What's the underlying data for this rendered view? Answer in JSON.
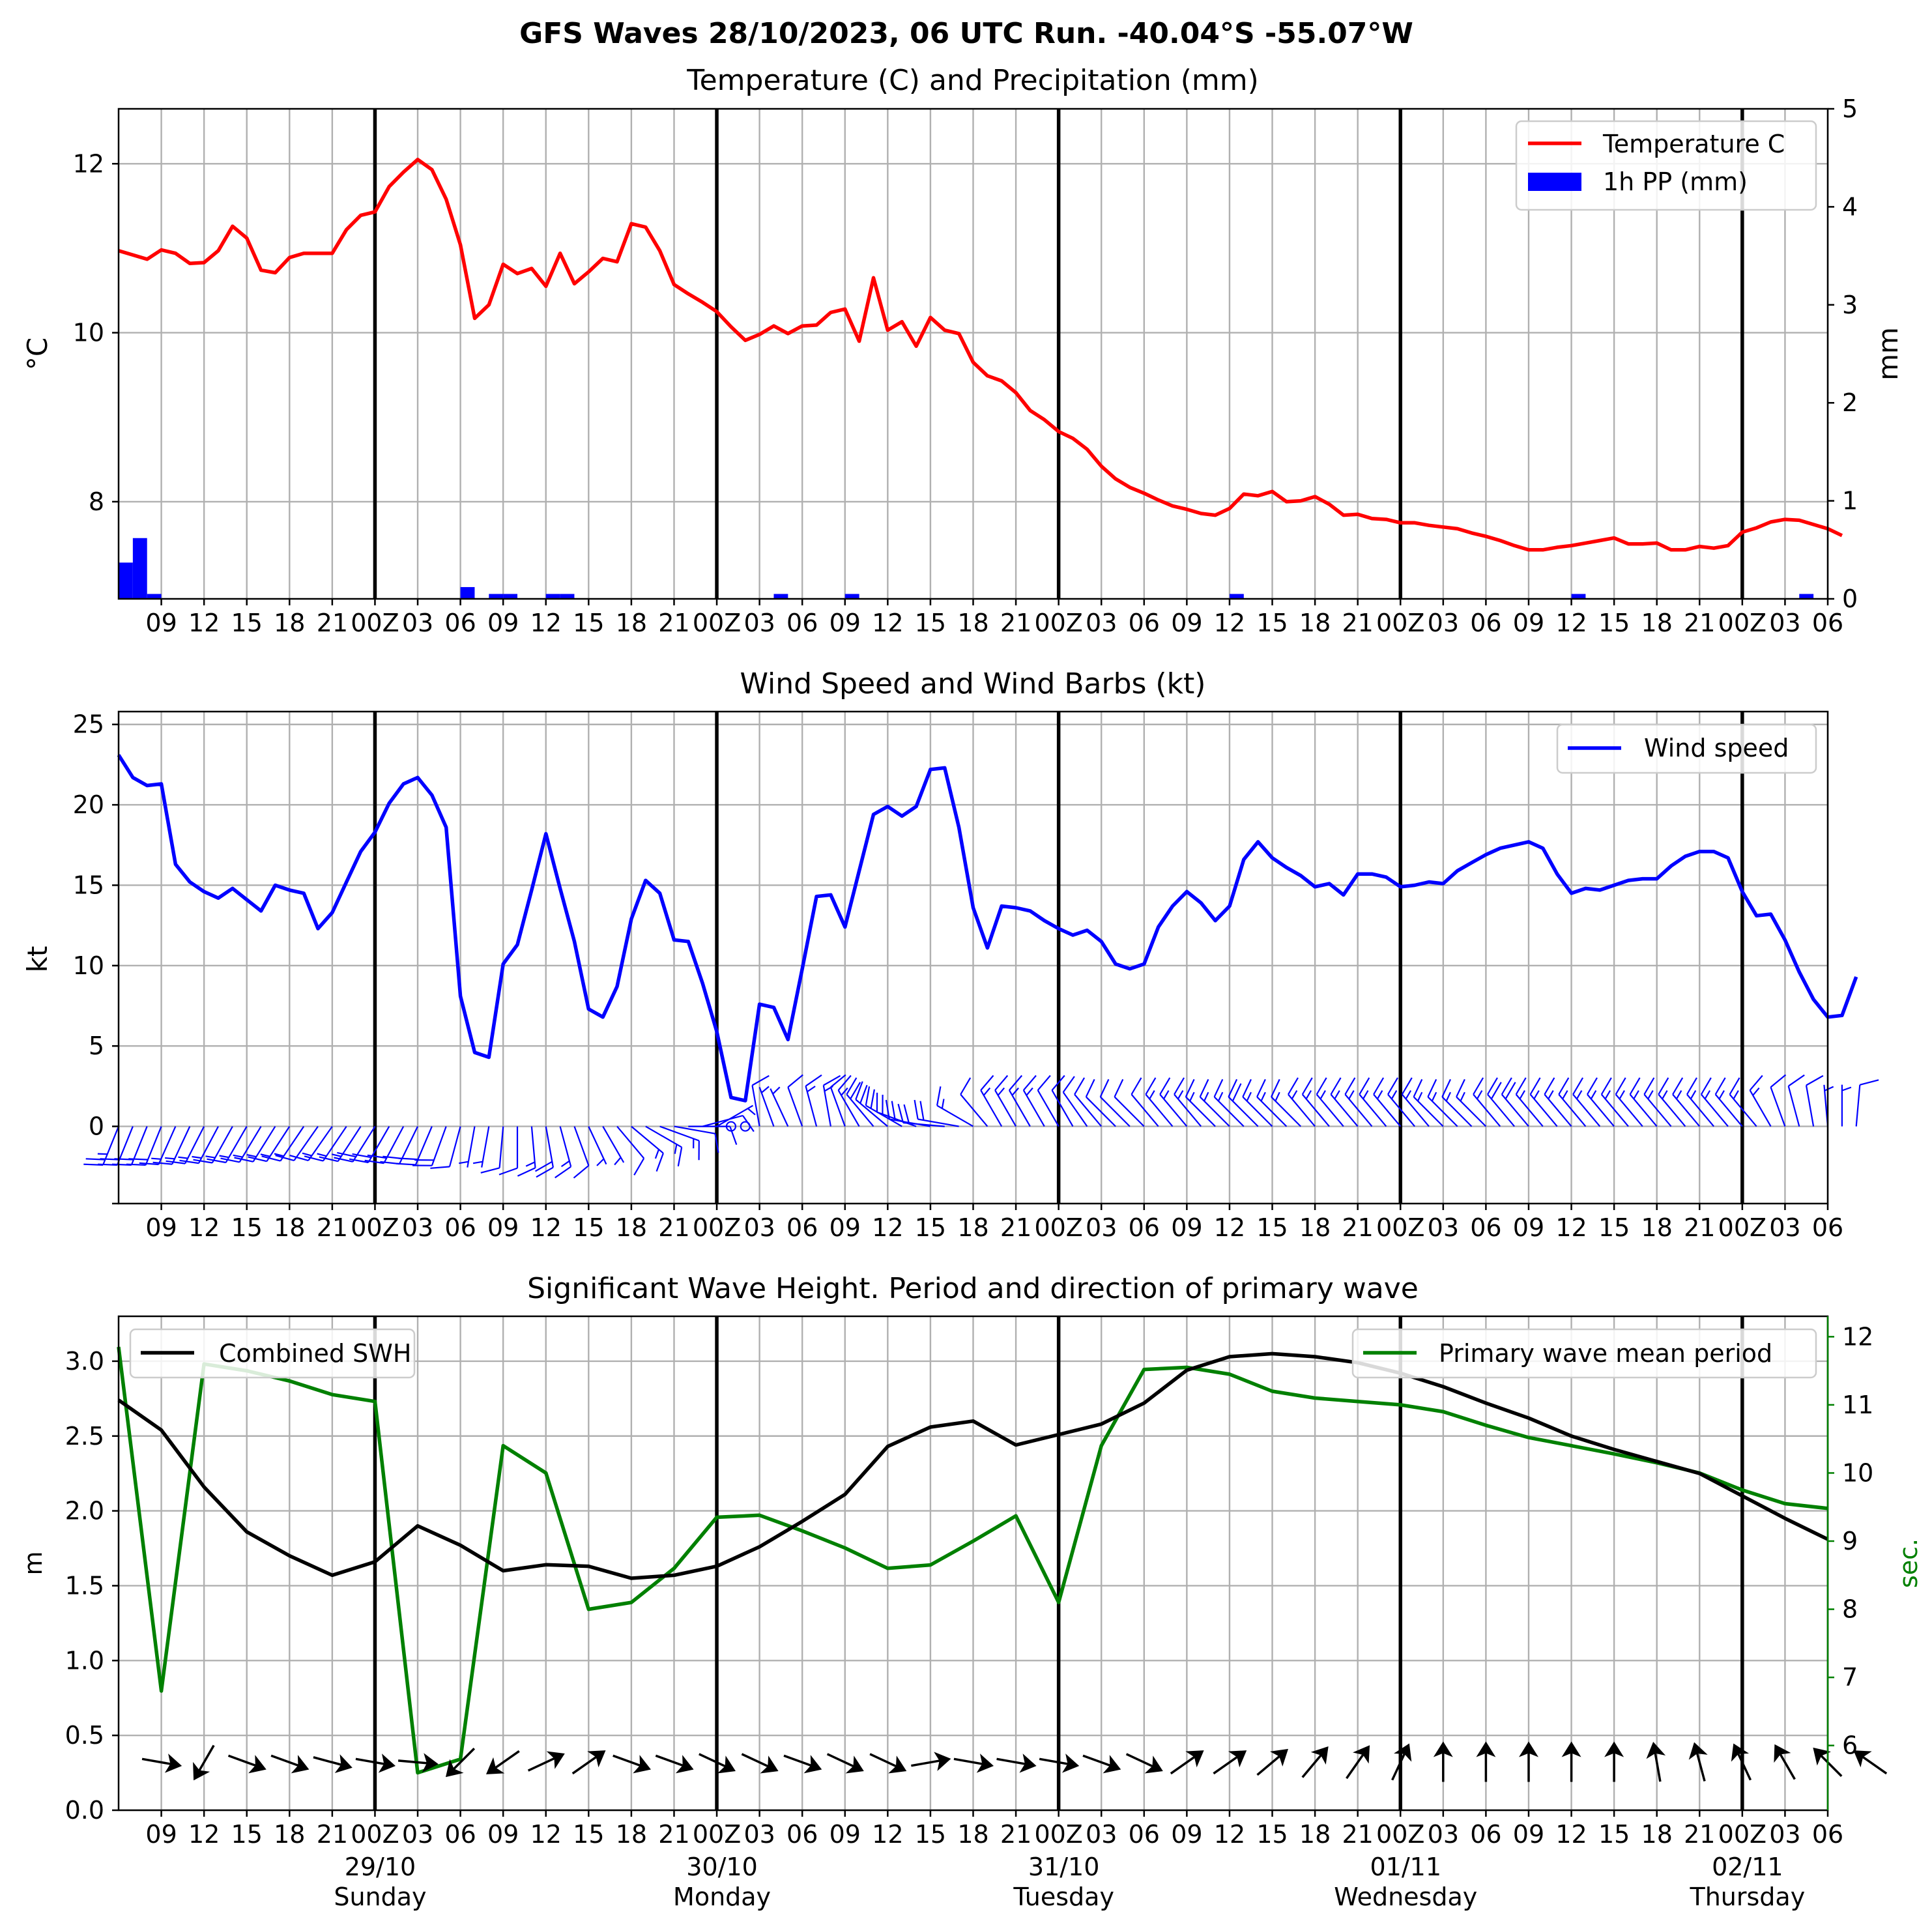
{
  "figure": {
    "suptitle": "GFS Waves 28/10/2023, 06 UTC Run. -40.04°S -55.07°W"
  },
  "chart_data": [
    {
      "type": "line",
      "title": "Temperature (C) and Precipitation (mm)",
      "ylabel": "$^\\circ$C",
      "ylabel_display": "°C",
      "y2label": "mm",
      "ylim": [
        6.85,
        12.65
      ],
      "y2lim": [
        0,
        5
      ],
      "yticks": [
        "8",
        "10",
        "12"
      ],
      "y2ticks": [
        "0",
        "1",
        "2",
        "3",
        "4",
        "5"
      ],
      "x_start_hour": 6,
      "x_step_hours": 1,
      "colors": {
        "temperature": "#ff0000",
        "precip": "#0000ff"
      },
      "legend_position": "upper right",
      "series": [
        {
          "name": "Temperature C",
          "values": [
            10.97,
            10.92,
            10.87,
            10.98,
            10.94,
            10.82,
            10.83,
            10.97,
            11.26,
            11.12,
            10.74,
            10.71,
            10.89,
            10.94,
            10.94,
            10.94,
            11.22,
            11.39,
            11.43,
            11.73,
            11.9,
            12.05,
            11.93,
            11.58,
            11.04,
            10.17,
            10.33,
            10.81,
            10.7,
            10.76,
            10.55,
            10.94,
            10.58,
            10.72,
            10.88,
            10.84,
            11.29,
            11.25,
            10.97,
            10.57,
            10.46,
            10.36,
            10.25,
            10.07,
            9.91,
            9.98,
            10.08,
            9.99,
            10.08,
            10.09,
            10.24,
            10.28,
            9.9,
            10.65,
            10.03,
            10.13,
            9.84,
            10.18,
            10.03,
            9.99,
            9.65,
            9.49,
            9.43,
            9.29,
            9.08,
            8.97,
            8.83,
            8.75,
            8.62,
            8.42,
            8.27,
            8.17,
            8.1,
            8.02,
            7.95,
            7.91,
            7.86,
            7.84,
            7.92,
            8.09,
            8.07,
            8.12,
            8.0,
            8.01,
            8.06,
            7.97,
            7.84,
            7.85,
            7.8,
            7.79,
            7.75,
            7.75,
            7.72,
            7.7,
            7.68,
            7.63,
            7.59,
            7.54,
            7.48,
            7.43,
            7.43,
            7.46,
            7.48,
            7.51,
            7.54,
            7.57,
            7.5,
            7.5,
            7.51,
            7.43,
            7.43,
            7.47,
            7.45,
            7.48,
            7.64,
            7.69,
            7.76,
            7.79,
            7.78,
            7.73,
            7.68,
            7.6
          ]
        },
        {
          "name": "1h PP (mm)",
          "values": [
            0.37,
            0.62,
            0.05,
            0,
            0,
            0,
            0,
            0,
            0,
            0,
            0,
            0,
            0,
            0,
            0,
            0,
            0,
            0,
            0,
            0,
            0,
            0,
            0,
            0,
            0.12,
            0,
            0.05,
            0.05,
            0,
            0,
            0.05,
            0.05,
            0,
            0,
            0,
            0,
            0,
            0,
            0,
            0,
            0,
            0,
            0,
            0,
            0,
            0,
            0.05,
            0,
            0,
            0,
            0,
            0.05,
            0,
            0,
            0,
            0,
            0,
            0,
            0,
            0,
            0,
            0,
            0,
            0,
            0,
            0,
            0,
            0,
            0,
            0,
            0,
            0,
            0,
            0,
            0,
            0,
            0,
            0,
            0.05,
            0,
            0,
            0,
            0,
            0,
            0,
            0,
            0,
            0,
            0,
            0,
            0,
            0,
            0,
            0,
            0,
            0,
            0,
            0,
            0,
            0,
            0,
            0,
            0.05,
            0,
            0,
            0,
            0,
            0,
            0,
            0,
            0,
            0,
            0,
            0,
            0,
            0,
            0,
            0,
            0.05,
            0,
            0,
            0,
            0,
            0
          ]
        }
      ]
    },
    {
      "type": "line",
      "title": "Wind Speed and Wind Barbs (kt)",
      "ylabel": "kt",
      "ylim": [
        -4.8,
        25.8
      ],
      "yticks": [
        "0",
        "5",
        "10",
        "15",
        "20",
        "25"
      ],
      "x_start_hour": 6,
      "x_step_hours": 1,
      "colors": {
        "wind": "#0000ff"
      },
      "legend_position": "upper right",
      "series": [
        {
          "name": "Wind speed",
          "values": [
            23.1,
            21.7,
            21.2,
            21.3,
            16.3,
            15.2,
            14.6,
            14.2,
            14.8,
            14.1,
            13.4,
            15,
            14.7,
            14.5,
            12.3,
            13.3,
            15.2,
            17.1,
            18.3,
            20.1,
            21.3,
            21.7,
            20.6,
            18.6,
            8.1,
            4.6,
            4.3,
            10.1,
            11.3,
            14.7,
            18.2,
            14.8,
            11.5,
            7.3,
            6.8,
            8.7,
            12.9,
            15.3,
            14.5,
            11.6,
            11.5,
            8.9,
            5.9,
            1.8,
            1.6,
            7.6,
            7.4,
            5.4,
            9.8,
            14.3,
            14.4,
            12.4,
            15.9,
            19.4,
            19.9,
            19.3,
            19.9,
            22.2,
            22.3,
            18.6,
            13.6,
            11.1,
            13.7,
            13.6,
            13.4,
            12.8,
            12.3,
            11.9,
            12.2,
            11.5,
            10.1,
            9.8,
            10.1,
            12.4,
            13.7,
            14.6,
            13.9,
            12.8,
            13.7,
            16.6,
            17.7,
            16.7,
            16.1,
            15.6,
            14.9,
            15.1,
            14.4,
            15.7,
            15.7,
            15.5,
            14.9,
            15,
            15.2,
            15.1,
            15.9,
            16.4,
            16.9,
            17.3,
            17.5,
            17.7,
            17.3,
            15.7,
            14.5,
            14.8,
            14.7,
            15,
            15.3,
            15.4,
            15.4,
            16.2,
            16.8,
            17.1,
            17.1,
            16.7,
            14.6,
            13.1,
            13.2,
            11.6,
            9.6,
            7.9,
            6.8,
            6.9,
            9.3
          ]
        }
      ],
      "barbs": {
        "heading_deg": [
          -158,
          -158,
          -158,
          -158,
          -156,
          -155,
          -153,
          -152,
          -151,
          -150,
          -149,
          -148,
          -147,
          -146,
          -145,
          -145,
          -146,
          -147,
          -148,
          -150,
          -152,
          -154,
          -157,
          -160,
          -165,
          -170,
          -170,
          -175,
          180,
          175,
          170,
          165,
          160,
          155,
          150,
          140,
          130,
          120,
          110,
          100,
          90,
          75,
          60,
          40,
          20,
          -10,
          -20,
          -25,
          -20,
          -15,
          -10,
          -20,
          -30,
          -40,
          -50,
          -60,
          -70,
          -80,
          -85,
          -80,
          -60,
          -40,
          -30,
          -30,
          -30,
          -30,
          -30,
          -30,
          -35,
          -40,
          -45,
          -45,
          -45,
          -40,
          -40,
          -40,
          -40,
          -45,
          -45,
          -45,
          -45,
          -45,
          -45,
          -45,
          -40,
          -40,
          -40,
          -40,
          -40,
          -40,
          -40,
          -40,
          -40,
          -45,
          -45,
          -45,
          -45,
          -40,
          -40,
          -40,
          -40,
          -40,
          -40,
          -40,
          -40,
          -40,
          -40,
          -40,
          -40,
          -40,
          -40,
          -40,
          -40,
          -40,
          -40,
          -40,
          -30,
          -20,
          -15,
          -10,
          -5,
          0,
          5
        ]
      }
    },
    {
      "type": "line",
      "title": "Significant Wave Height. Period and direction of primary wave",
      "ylabel": "m",
      "y2label": "sec.",
      "ylim": [
        0,
        3.3
      ],
      "y2lim": [
        5.05,
        12.3
      ],
      "yticks": [
        "0.0",
        "0.5",
        "1.0",
        "1.5",
        "2.0",
        "2.5",
        "3.0"
      ],
      "y2ticks": [
        "6",
        "7",
        "8",
        "9",
        "10",
        "11",
        "12"
      ],
      "x_start_hour": 6,
      "x_step_hours": 3,
      "colors": {
        "swh": "#000000",
        "period": "#008000",
        "arrows": "#000000"
      },
      "series": [
        {
          "name": "Combined SWH",
          "values": [
            2.74,
            2.54,
            2.16,
            1.86,
            1.7,
            1.57,
            1.66,
            1.9,
            1.77,
            1.6,
            1.64,
            1.63,
            1.55,
            1.57,
            1.63,
            1.76,
            1.93,
            2.11,
            2.43,
            2.56,
            2.6,
            2.44,
            2.51,
            2.58,
            2.72,
            2.94,
            3.03,
            3.05,
            3.03,
            2.99,
            2.92,
            2.83,
            2.72,
            2.62,
            2.5,
            2.41,
            2.33,
            2.25,
            2.1,
            1.95,
            1.81
          ]
        },
        {
          "name": "Primary wave mean period",
          "values": [
            11.85,
            6.8,
            11.6,
            11.5,
            11.35,
            11.15,
            11.05,
            5.6,
            5.8,
            10.4,
            10.0,
            8.0,
            8.1,
            8.6,
            9.35,
            9.38,
            9.15,
            8.9,
            8.6,
            8.65,
            9.0,
            9.37,
            8.1,
            10.4,
            11.52,
            11.55,
            11.45,
            11.2,
            11.1,
            11.05,
            11.0,
            10.9,
            10.7,
            10.52,
            10.4,
            10.28,
            10.15,
            10.0,
            9.75,
            9.55,
            9.48
          ]
        }
      ],
      "legend_position": [
        "upper left",
        "upper right"
      ],
      "direction_arrows": {
        "heading_deg": [
          100,
          210,
          110,
          110,
          105,
          100,
          95,
          225,
          235,
          65,
          55,
          110,
          110,
          115,
          115,
          110,
          115,
          115,
          80,
          100,
          100,
          100,
          110,
          115,
          55,
          55,
          50,
          40,
          35,
          25,
          0,
          0,
          0,
          0,
          0,
          -10,
          -15,
          -25,
          -30,
          -45,
          -55
        ]
      }
    }
  ],
  "xaxis": {
    "tick_labels": [
      "09",
      "12",
      "15",
      "18",
      "21",
      "00Z",
      "03",
      "06",
      "09",
      "12",
      "15",
      "18",
      "21",
      "00Z",
      "03",
      "06",
      "09",
      "12",
      "15",
      "18",
      "21",
      "00Z",
      "03",
      "06",
      "09",
      "12",
      "15",
      "18",
      "21",
      "00Z",
      "03",
      "06",
      "09",
      "12",
      "15",
      "18",
      "21",
      "00Z",
      "03",
      "06"
    ],
    "day_labels": [
      {
        "date": "29/10",
        "weekday": "Sunday"
      },
      {
        "date": "30/10",
        "weekday": "Monday"
      },
      {
        "date": "31/10",
        "weekday": "Tuesday"
      },
      {
        "date": "01/11",
        "weekday": "Wednesday"
      },
      {
        "date": "02/11",
        "weekday": "Thursday"
      }
    ]
  }
}
